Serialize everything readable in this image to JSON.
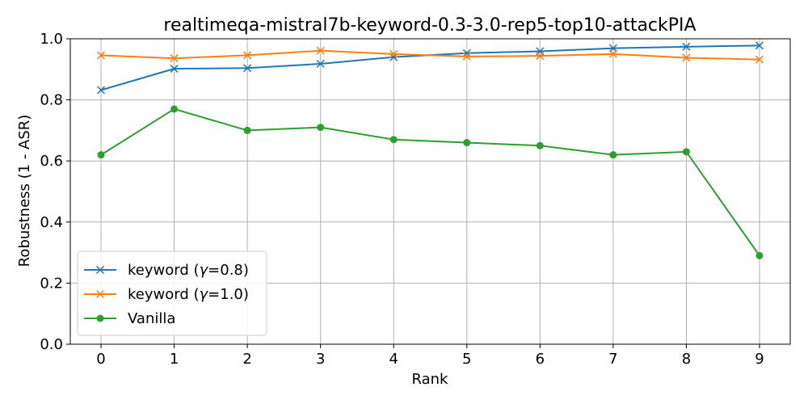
{
  "chart_data": {
    "type": "line",
    "title": "realtimeqa-mistral7b-keyword-0.3-3.0-rep5-top10-attackPIA",
    "xlabel": "Rank",
    "ylabel": "Robustness (1 - ASR)",
    "x": [
      0,
      1,
      2,
      3,
      4,
      5,
      6,
      7,
      8,
      9
    ],
    "xticks": [
      "0",
      "1",
      "2",
      "3",
      "4",
      "5",
      "6",
      "7",
      "8",
      "9"
    ],
    "yticks": [
      "0.0",
      "0.2",
      "0.4",
      "0.6",
      "0.8",
      "1.0"
    ],
    "ylim": [
      0,
      1.0
    ],
    "xlim": [
      -0.42,
      9.42
    ],
    "grid": true,
    "legend_position": "lower-left",
    "series": [
      {
        "name": "keyword (γ=0.8)",
        "name_prefix": "keyword (",
        "name_symbol": "γ",
        "name_suffix": "=0.8)",
        "color": "#1f77b4",
        "marker": "x",
        "values": [
          0.832,
          0.902,
          0.904,
          0.918,
          0.94,
          0.953,
          0.959,
          0.969,
          0.974,
          0.978
        ]
      },
      {
        "name": "keyword (γ=1.0)",
        "name_prefix": "keyword (",
        "name_symbol": "γ",
        "name_suffix": "=1.0)",
        "color": "#ff7f0e",
        "marker": "x",
        "values": [
          0.946,
          0.936,
          0.946,
          0.961,
          0.95,
          0.942,
          0.944,
          0.95,
          0.938,
          0.932
        ]
      },
      {
        "name": "Vanilla",
        "name_prefix": "Vanilla",
        "name_symbol": "",
        "name_suffix": "",
        "color": "#2ca02c",
        "marker": "circle",
        "values": [
          0.62,
          0.77,
          0.7,
          0.71,
          0.67,
          0.66,
          0.65,
          0.62,
          0.63,
          0.29
        ]
      }
    ]
  }
}
